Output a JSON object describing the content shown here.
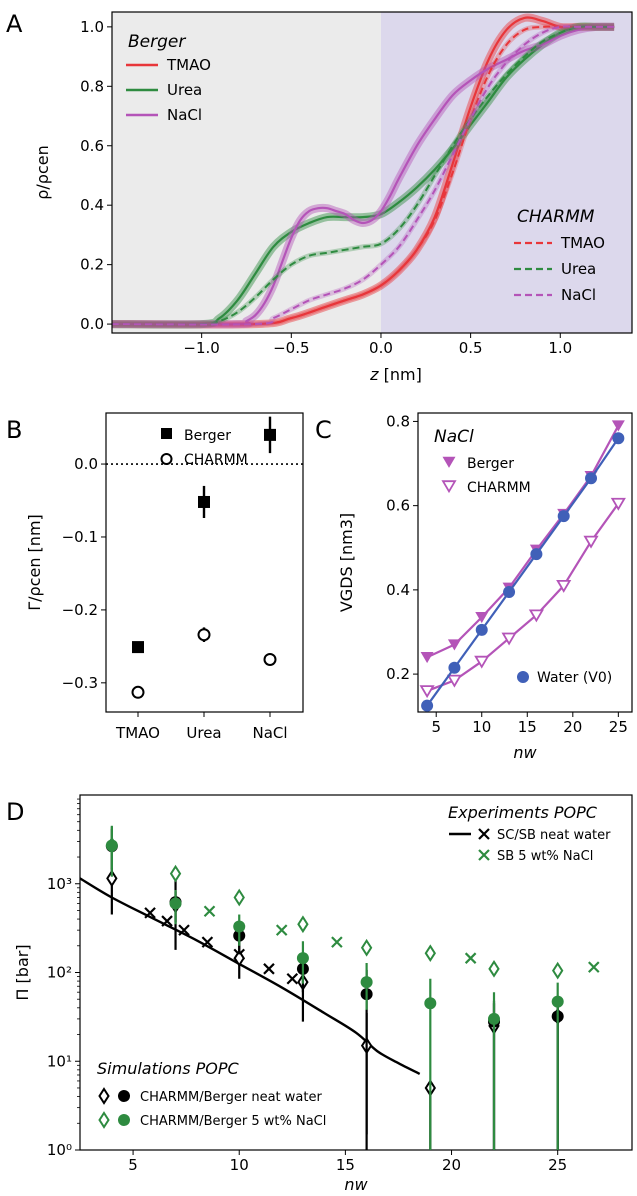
{
  "panel_letters": {
    "a": "A",
    "b": "B",
    "c": "C",
    "d": "D"
  },
  "colors": {
    "tmao": "#e8363a",
    "urea": "#2e8b40",
    "nacl": "#b454b8",
    "water": "#4060b8",
    "black": "#000000",
    "green": "#2e8b40",
    "region_left": "#ebebeb",
    "region_right": "#dcd8ec"
  },
  "chart_data": [
    {
      "panel": "A",
      "type": "line",
      "xlabel": "z [nm]",
      "ylabel": "ρ/ρcen",
      "xlim": [
        -1.5,
        1.4
      ],
      "ylim": [
        -0.03,
        1.05
      ],
      "xticks": [
        "−1.0",
        "−0.5",
        "0.0",
        "0.5",
        "1.0"
      ],
      "xtick_values": [
        -1.0,
        -0.5,
        0.0,
        0.5,
        1.0
      ],
      "yticks": [
        "0.0",
        "0.2",
        "0.4",
        "0.6",
        "0.8",
        "1.0"
      ],
      "ytick_values": [
        0.0,
        0.2,
        0.4,
        0.6,
        0.8,
        1.0
      ],
      "shaded_regions": [
        {
          "from": -1.5,
          "to": 0.0,
          "fill": "region_left"
        },
        {
          "from": 0.0,
          "to": 1.4,
          "fill": "region_right"
        }
      ],
      "legend_berger": {
        "title": "Berger",
        "entries": [
          "TMAO",
          "Urea",
          "NaCl"
        ]
      },
      "legend_charmm": {
        "title": "CHARMM",
        "entries": [
          "TMAO",
          "Urea",
          "NaCl"
        ]
      },
      "series": [
        {
          "forcefield": "Berger",
          "label": "TMAO",
          "color": "tmao",
          "dashed": false,
          "x": [
            -1.5,
            -0.7,
            -0.5,
            -0.3,
            -0.2,
            -0.1,
            0.0,
            0.1,
            0.2,
            0.3,
            0.4,
            0.5,
            0.6,
            0.7,
            0.8,
            0.9,
            1.0,
            1.1,
            1.2,
            1.3
          ],
          "y": [
            0.0,
            0.0,
            0.02,
            0.06,
            0.08,
            0.1,
            0.13,
            0.18,
            0.25,
            0.36,
            0.54,
            0.73,
            0.89,
            0.99,
            1.03,
            1.02,
            1.0,
            1.0,
            1.0,
            1.0
          ]
        },
        {
          "forcefield": "Berger",
          "label": "Urea",
          "color": "urea",
          "dashed": false,
          "x": [
            -1.5,
            -1.0,
            -0.9,
            -0.8,
            -0.7,
            -0.6,
            -0.5,
            -0.4,
            -0.3,
            -0.2,
            -0.1,
            0.0,
            0.1,
            0.2,
            0.3,
            0.4,
            0.5,
            0.6,
            0.7,
            0.8,
            0.9,
            1.0,
            1.1,
            1.2,
            1.3
          ],
          "y": [
            0.0,
            0.0,
            0.02,
            0.08,
            0.17,
            0.26,
            0.31,
            0.34,
            0.36,
            0.36,
            0.36,
            0.37,
            0.41,
            0.46,
            0.52,
            0.59,
            0.67,
            0.75,
            0.83,
            0.89,
            0.94,
            0.98,
            1.0,
            1.0,
            1.0
          ]
        },
        {
          "forcefield": "Berger",
          "label": "NaCl",
          "color": "nacl",
          "dashed": false,
          "x": [
            -1.5,
            -0.8,
            -0.75,
            -0.7,
            -0.65,
            -0.6,
            -0.55,
            -0.5,
            -0.45,
            -0.4,
            -0.35,
            -0.3,
            -0.25,
            -0.2,
            -0.15,
            -0.1,
            -0.05,
            0.0,
            0.05,
            0.1,
            0.2,
            0.3,
            0.4,
            0.5,
            0.6,
            0.7,
            0.8,
            0.9,
            1.0,
            1.1,
            1.2,
            1.3
          ],
          "y": [
            0.0,
            0.0,
            0.01,
            0.03,
            0.07,
            0.13,
            0.21,
            0.29,
            0.35,
            0.38,
            0.39,
            0.39,
            0.38,
            0.37,
            0.35,
            0.34,
            0.35,
            0.38,
            0.43,
            0.49,
            0.6,
            0.69,
            0.77,
            0.82,
            0.86,
            0.89,
            0.92,
            0.94,
            0.97,
            0.99,
            1.0,
            1.0
          ]
        },
        {
          "forcefield": "CHARMM",
          "label": "TMAO",
          "color": "tmao",
          "dashed": true,
          "x": [
            -1.5,
            -0.7,
            -0.5,
            -0.3,
            -0.2,
            -0.1,
            0.0,
            0.1,
            0.2,
            0.3,
            0.4,
            0.5,
            0.6,
            0.7,
            0.8,
            0.9,
            1.0,
            1.1,
            1.2,
            1.3
          ],
          "y": [
            0.0,
            0.0,
            0.02,
            0.06,
            0.08,
            0.1,
            0.13,
            0.18,
            0.25,
            0.35,
            0.51,
            0.69,
            0.84,
            0.94,
            0.99,
            1.0,
            1.0,
            1.0,
            1.0,
            1.0
          ]
        },
        {
          "forcefield": "CHARMM",
          "label": "Urea",
          "color": "urea",
          "dashed": true,
          "x": [
            -1.5,
            -1.0,
            -0.9,
            -0.8,
            -0.7,
            -0.6,
            -0.5,
            -0.4,
            -0.3,
            -0.2,
            -0.1,
            0.0,
            0.1,
            0.2,
            0.3,
            0.4,
            0.5,
            0.6,
            0.7,
            0.8,
            0.9,
            1.0,
            1.1,
            1.2,
            1.3
          ],
          "y": [
            0.0,
            0.0,
            0.01,
            0.04,
            0.09,
            0.15,
            0.2,
            0.23,
            0.24,
            0.25,
            0.26,
            0.27,
            0.32,
            0.4,
            0.5,
            0.6,
            0.69,
            0.77,
            0.84,
            0.9,
            0.95,
            0.98,
            1.0,
            1.0,
            1.0
          ]
        },
        {
          "forcefield": "CHARMM",
          "label": "NaCl",
          "color": "nacl",
          "dashed": true,
          "x": [
            -1.5,
            -0.7,
            -0.6,
            -0.5,
            -0.4,
            -0.3,
            -0.2,
            -0.1,
            0.0,
            0.1,
            0.2,
            0.3,
            0.4,
            0.5,
            0.6,
            0.7,
            0.8,
            0.9,
            1.0,
            1.1,
            1.2,
            1.3
          ],
          "y": [
            0.0,
            0.0,
            0.02,
            0.05,
            0.08,
            0.1,
            0.12,
            0.15,
            0.2,
            0.26,
            0.35,
            0.45,
            0.57,
            0.69,
            0.8,
            0.88,
            0.94,
            0.98,
            1.0,
            1.0,
            1.0,
            1.0
          ]
        }
      ]
    },
    {
      "panel": "B",
      "type": "scatter",
      "ylabel": "Γ/ρcen [nm]",
      "categories": [
        "TMAO",
        "Urea",
        "NaCl"
      ],
      "ylim": [
        -0.34,
        0.07
      ],
      "yticks": [
        "0.0",
        "−0.1",
        "−0.2",
        "−0.3"
      ],
      "ytick_values": [
        0.0,
        -0.1,
        -0.2,
        -0.3
      ],
      "reference_line": 0.0,
      "series": [
        {
          "name": "Berger",
          "marker": "filled-square",
          "values": [
            -0.251,
            -0.052,
            0.04
          ],
          "errors": [
            0.0,
            0.022,
            0.025
          ]
        },
        {
          "name": "CHARMM",
          "marker": "open-circle",
          "values": [
            -0.313,
            -0.234,
            -0.268
          ],
          "errors": [
            0.0,
            0.01,
            0.0
          ]
        }
      ]
    },
    {
      "panel": "C",
      "type": "line",
      "annotation": "NaCl",
      "xlabel": "nw",
      "ylabel": "VGDS [nm3]",
      "xlim": [
        3,
        26.5
      ],
      "ylim": [
        0.11,
        0.82
      ],
      "xticks": [
        "5",
        "10",
        "15",
        "20",
        "25"
      ],
      "xtick_values": [
        5,
        10,
        15,
        20,
        25
      ],
      "yticks": [
        "0.2",
        "0.4",
        "0.6",
        "0.8"
      ],
      "ytick_values": [
        0.2,
        0.4,
        0.6,
        0.8
      ],
      "x": [
        4,
        7,
        10,
        13,
        16,
        19,
        22,
        25
      ],
      "series": [
        {
          "name": "Berger",
          "marker": "filled-triangle-down",
          "color": "nacl",
          "values": [
            0.24,
            0.27,
            0.335,
            0.405,
            0.495,
            0.58,
            0.67,
            0.79
          ]
        },
        {
          "name": "CHARMM",
          "marker": "open-triangle-down",
          "color": "nacl",
          "values": [
            0.16,
            0.185,
            0.23,
            0.285,
            0.34,
            0.41,
            0.515,
            0.605
          ]
        },
        {
          "name": "Water (V0)",
          "marker": "filled-circle",
          "color": "water",
          "values": [
            0.125,
            0.215,
            0.305,
            0.395,
            0.485,
            0.575,
            0.665,
            0.76
          ]
        }
      ]
    },
    {
      "panel": "D",
      "type": "scatter",
      "xlabel": "nw",
      "ylabel": "Π [bar]",
      "yscale": "log",
      "xlim": [
        2.5,
        28.5
      ],
      "ylim": [
        1,
        10000
      ],
      "xticks": [
        "5",
        "10",
        "15",
        "20",
        "25"
      ],
      "xtick_values": [
        5,
        10,
        15,
        20,
        25
      ],
      "yticks": [
        "10⁰",
        "10¹",
        "10²",
        "10³"
      ],
      "ytick_values": [
        1,
        10,
        100,
        1000
      ],
      "legend_experiments": {
        "title": "Experiments POPC",
        "entries": [
          "SC/SB neat water",
          "SB 5 wt% NaCl"
        ]
      },
      "legend_simulations": {
        "title": "Simulations POPC",
        "entries": [
          "CHARMM/Berger neat water",
          "CHARMM/Berger 5 wt% NaCl"
        ]
      },
      "series": [
        {
          "name": "SC neat water fit",
          "kind": "line",
          "color": "black",
          "x": [
            2.5,
            4,
            6,
            8,
            10,
            12,
            14,
            15.5,
            16.5,
            17.5,
            18.5
          ],
          "y": [
            1150,
            700,
            400,
            230,
            125,
            68,
            35,
            21,
            13,
            9.5,
            7.2
          ]
        },
        {
          "name": "SB neat water",
          "kind": "x",
          "color": "black",
          "x": [
            5.8,
            6.6,
            7.4,
            8.5,
            10.0,
            11.4,
            12.5
          ],
          "y": [
            470,
            380,
            300,
            220,
            160,
            110,
            85
          ]
        },
        {
          "name": "SB 5 wt% NaCl",
          "kind": "x",
          "color": "green",
          "x": [
            8.6,
            12.0,
            14.6,
            20.9,
            26.7
          ],
          "y": [
            490,
            300,
            220,
            145,
            115
          ]
        },
        {
          "name": "CHARMM neat water",
          "kind": "open-diamond",
          "color": "black",
          "x": [
            4,
            7,
            10,
            13,
            16,
            19,
            22,
            25
          ],
          "y": [
            1150,
            580,
            145,
            78,
            15,
            5,
            25,
            32
          ],
          "err_low": [
            700,
            400,
            60,
            50,
            13.5,
            4,
            24,
            31
          ],
          "err_high": [
            1900,
            700,
            80,
            80,
            20,
            0,
            20,
            20
          ]
        },
        {
          "name": "Berger neat water",
          "kind": "filled-circle",
          "color": "black",
          "x": [
            4,
            7,
            10,
            13,
            16,
            19,
            22,
            25
          ],
          "y": [
            2650,
            620,
            260,
            110,
            57,
            0,
            28,
            32
          ],
          "err_low": [
            1200,
            250,
            100,
            50,
            56,
            0,
            27,
            31
          ],
          "err_high": [
            1500,
            200,
            100,
            50,
            50,
            0,
            20,
            20
          ]
        },
        {
          "name": "CHARMM 5 wt% NaCl",
          "kind": "open-diamond",
          "color": "green",
          "x": [
            4,
            7,
            10,
            13,
            16,
            19,
            22,
            25
          ],
          "y": [
            2700,
            1300,
            700,
            350,
            190,
            165,
            110,
            105
          ],
          "err_low": [
            1200,
            0,
            0,
            0,
            0,
            0,
            0,
            0
          ],
          "err_high": [
            1800,
            0,
            0,
            0,
            0,
            0,
            0,
            0
          ]
        },
        {
          "name": "Berger 5 wt% NaCl",
          "kind": "filled-circle",
          "color": "green",
          "x": [
            4,
            7,
            10,
            13,
            16,
            19,
            22,
            25
          ],
          "y": [
            2700,
            600,
            330,
            145,
            78,
            45,
            30,
            47
          ],
          "err_low": [
            1500,
            250,
            130,
            70,
            40,
            44,
            29,
            46
          ],
          "err_high": [
            1700,
            250,
            120,
            80,
            50,
            40,
            30,
            30
          ]
        }
      ]
    }
  ]
}
